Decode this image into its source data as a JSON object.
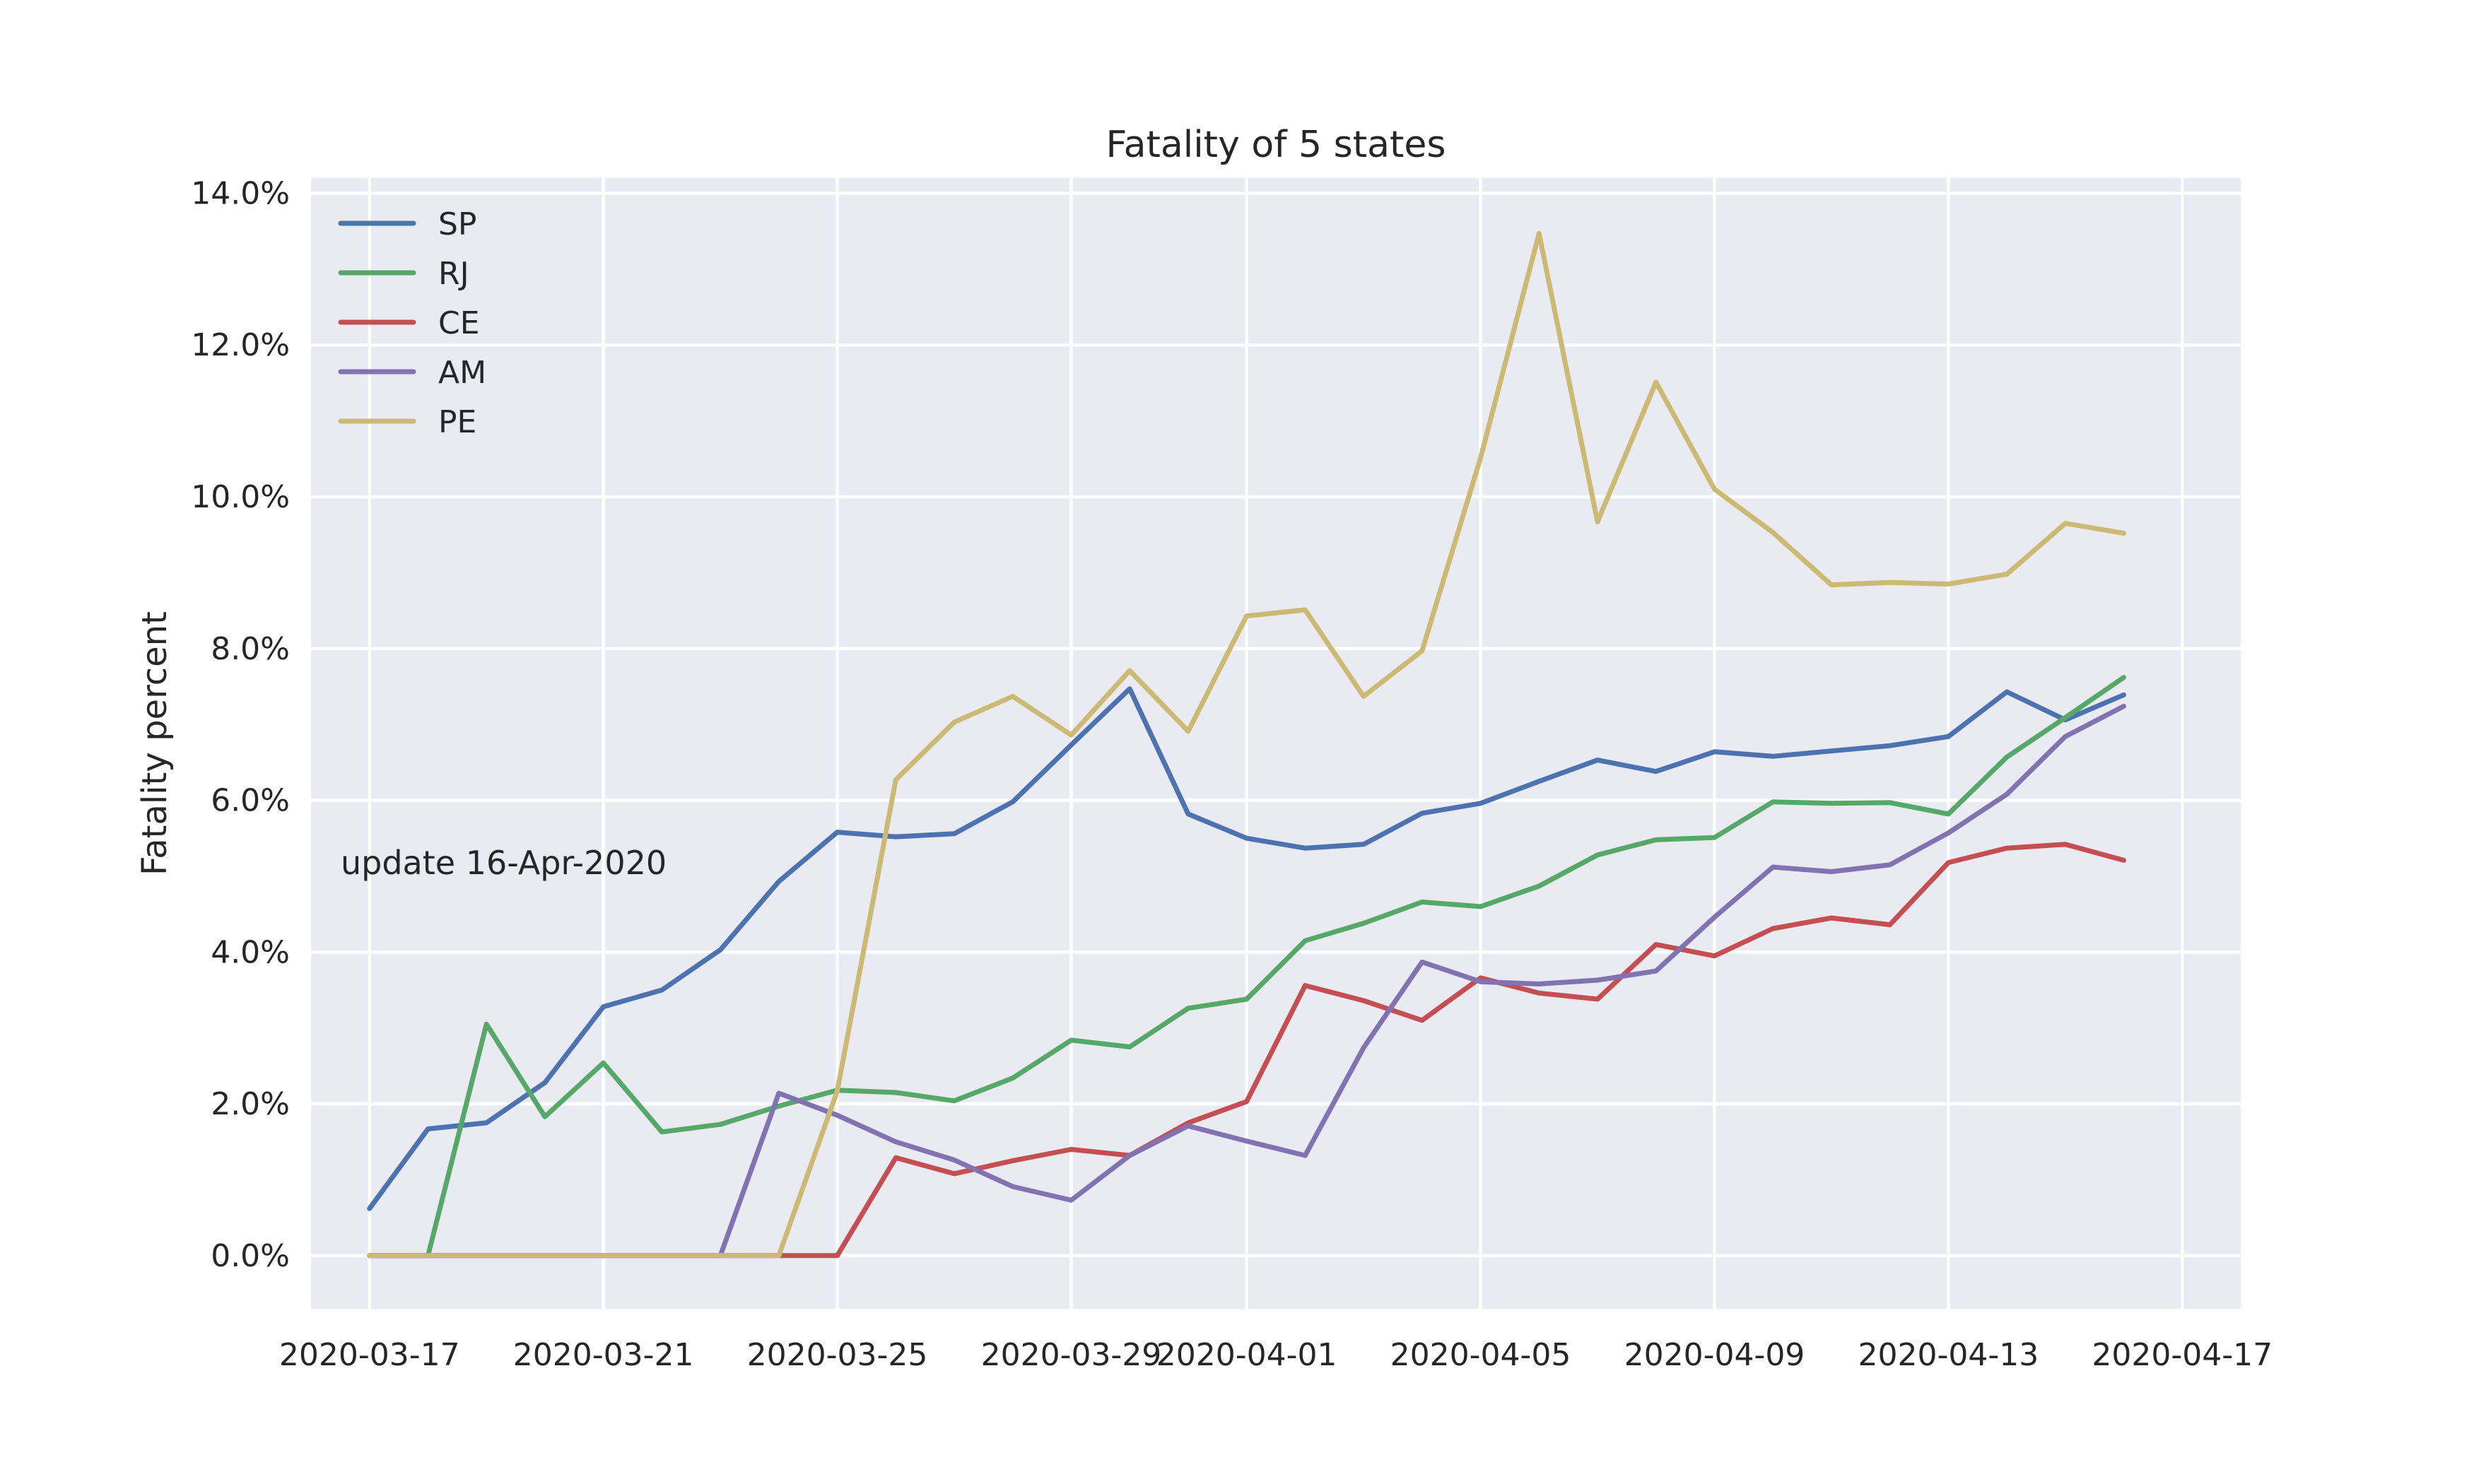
{
  "chart_data": {
    "type": "line",
    "title": "Fatality of 5 states",
    "ylabel": "Fatality percent",
    "xlabel": "",
    "annotation": "update 16-Apr-2020",
    "x": [
      "2020-03-17",
      "2020-03-18",
      "2020-03-19",
      "2020-03-20",
      "2020-03-21",
      "2020-03-22",
      "2020-03-23",
      "2020-03-24",
      "2020-03-25",
      "2020-03-26",
      "2020-03-27",
      "2020-03-28",
      "2020-03-29",
      "2020-03-30",
      "2020-03-31",
      "2020-04-01",
      "2020-04-02",
      "2020-04-03",
      "2020-04-04",
      "2020-04-05",
      "2020-04-06",
      "2020-04-07",
      "2020-04-08",
      "2020-04-09",
      "2020-04-10",
      "2020-04-11",
      "2020-04-12",
      "2020-04-13",
      "2020-04-14",
      "2020-04-15",
      "2020-04-16"
    ],
    "x_ticks": [
      "2020-03-17",
      "2020-03-21",
      "2020-03-25",
      "2020-03-29",
      "2020-04-01",
      "2020-04-05",
      "2020-04-09",
      "2020-04-13",
      "2020-04-17"
    ],
    "y_ticks": [
      "0.0%",
      "2.0%",
      "4.0%",
      "6.0%",
      "8.0%",
      "10.0%",
      "12.0%",
      "14.0%"
    ],
    "xlim": [
      "2020-03-16",
      "2020-04-18"
    ],
    "ylim": [
      -0.7,
      14.2
    ],
    "grid": true,
    "legend_position": "top-left",
    "background_color": "#eaeaf2",
    "series": [
      {
        "name": "SP",
        "color": "#4c72b0",
        "values": [
          0.62,
          1.67,
          1.75,
          2.28,
          3.28,
          3.5,
          4.03,
          4.93,
          5.58,
          5.52,
          5.56,
          5.98,
          6.73,
          7.47,
          5.82,
          5.5,
          5.37,
          5.42,
          5.83,
          5.96,
          6.25,
          6.53,
          6.38,
          6.64,
          6.58,
          6.65,
          6.72,
          6.84,
          7.43,
          7.06,
          7.39
        ]
      },
      {
        "name": "RJ",
        "color": "#55a868",
        "values": [
          0,
          0,
          3.05,
          1.83,
          2.54,
          1.63,
          1.73,
          1.97,
          2.18,
          2.15,
          2.04,
          2.34,
          2.84,
          2.75,
          3.26,
          3.38,
          4.15,
          4.38,
          4.66,
          4.6,
          4.87,
          5.28,
          5.48,
          5.51,
          5.98,
          5.96,
          5.97,
          5.82,
          6.57,
          7.09,
          7.62
        ]
      },
      {
        "name": "CE",
        "color": "#c44e52",
        "values": [
          0,
          0,
          0,
          0,
          0,
          0,
          0,
          0,
          0,
          1.29,
          1.08,
          1.25,
          1.4,
          1.32,
          1.75,
          2.03,
          3.56,
          3.36,
          3.1,
          3.66,
          3.46,
          3.38,
          4.1,
          3.95,
          4.31,
          4.45,
          4.36,
          5.18,
          5.37,
          5.42,
          5.21
        ]
      },
      {
        "name": "AM",
        "color": "#8172b2",
        "values": [
          0,
          0,
          0,
          0,
          0,
          0,
          0,
          2.14,
          1.85,
          1.5,
          1.26,
          0.91,
          0.73,
          1.32,
          1.71,
          1.51,
          1.32,
          2.74,
          3.87,
          3.61,
          3.58,
          3.63,
          3.75,
          4.46,
          5.12,
          5.06,
          5.15,
          5.57,
          6.08,
          6.84,
          7.24
        ]
      },
      {
        "name": "PE",
        "color": "#ccb974",
        "values": [
          0,
          0,
          0,
          0,
          0,
          0,
          0,
          0,
          2.17,
          6.27,
          7.03,
          7.37,
          6.86,
          7.71,
          6.91,
          8.43,
          8.51,
          7.37,
          7.97,
          10.51,
          13.47,
          9.67,
          11.51,
          10.1,
          9.53,
          8.84,
          8.87,
          8.85,
          8.98,
          9.65,
          9.52
        ]
      }
    ]
  }
}
